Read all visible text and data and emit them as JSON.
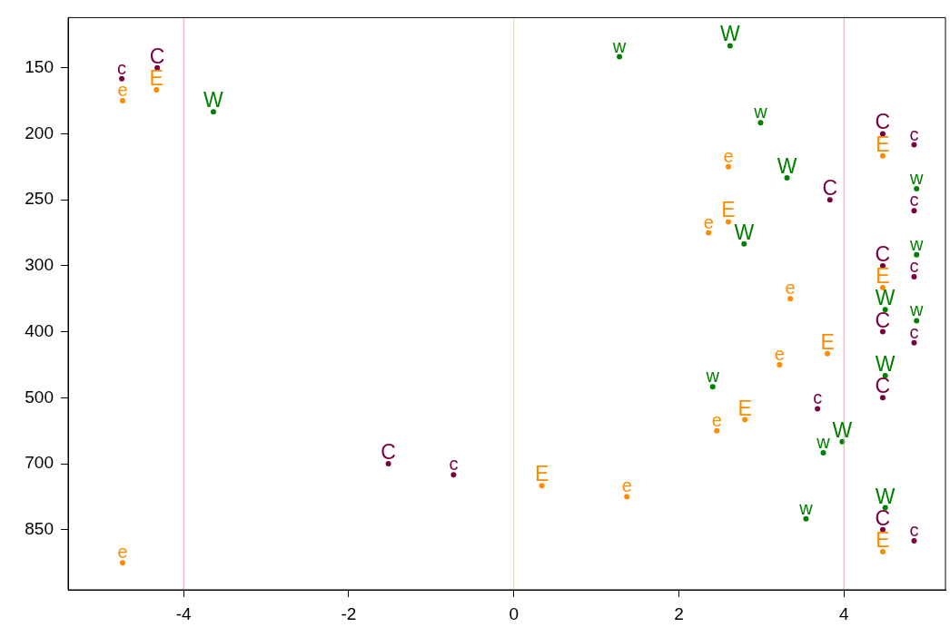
{
  "chart_data": {
    "type": "scatter",
    "orientation": "horizontal",
    "xlim": [
      -5.4,
      5.23
    ],
    "xticks": [
      -4,
      -2,
      0,
      2,
      4
    ],
    "categories": [
      null,
      null,
      "150",
      null,
      null,
      null,
      null,
      null,
      "200",
      null,
      null,
      null,
      null,
      null,
      "250",
      null,
      null,
      null,
      null,
      null,
      "300",
      null,
      null,
      null,
      null,
      null,
      "400",
      null,
      null,
      null,
      null,
      null,
      "500",
      null,
      null,
      null,
      null,
      null,
      "700",
      null,
      null,
      null,
      null,
      null,
      "850",
      null,
      null,
      null
    ],
    "legend": false,
    "ref_lines": [
      {
        "axis": "x",
        "value": -4,
        "color": "#f0a0a8"
      },
      {
        "axis": "x",
        "value": 0,
        "color": "#ffd27a"
      },
      {
        "axis": "x",
        "value": 4,
        "color": "#f0a0a8"
      }
    ],
    "series": [
      {
        "name": "W",
        "color": "#008000",
        "values": [
          2.62,
          null,
          null,
          null,
          null,
          null,
          -3.64,
          null,
          null,
          null,
          null,
          null,
          3.31,
          null,
          null,
          null,
          null,
          null,
          2.79,
          null,
          null,
          null,
          null,
          null,
          4.5,
          null,
          null,
          null,
          null,
          null,
          4.5,
          null,
          null,
          null,
          null,
          null,
          3.98,
          null,
          null,
          null,
          null,
          null,
          4.5,
          null,
          null,
          null,
          null,
          null
        ]
      },
      {
        "name": "w",
        "color": "#008000",
        "values": [
          null,
          1.28,
          null,
          null,
          null,
          null,
          null,
          2.99,
          null,
          null,
          null,
          null,
          null,
          4.88,
          null,
          null,
          null,
          null,
          null,
          4.88,
          null,
          null,
          null,
          null,
          null,
          4.88,
          null,
          null,
          null,
          null,
          null,
          2.41,
          null,
          null,
          null,
          null,
          null,
          3.75,
          null,
          null,
          null,
          null,
          null,
          3.54,
          null,
          null,
          null,
          null
        ]
      },
      {
        "name": "C",
        "color": "#7a0040",
        "values": [
          null,
          null,
          -4.32,
          null,
          null,
          null,
          null,
          null,
          4.47,
          null,
          null,
          null,
          null,
          null,
          3.83,
          null,
          null,
          null,
          null,
          null,
          4.47,
          null,
          null,
          null,
          null,
          null,
          4.47,
          null,
          null,
          null,
          null,
          null,
          4.47,
          null,
          null,
          null,
          null,
          null,
          -1.52,
          null,
          null,
          null,
          null,
          null,
          4.47,
          null,
          null,
          null
        ]
      },
      {
        "name": "c",
        "color": "#7a0040",
        "values": [
          null,
          null,
          null,
          -4.75,
          null,
          null,
          null,
          null,
          null,
          4.85,
          null,
          null,
          null,
          null,
          null,
          4.85,
          null,
          null,
          null,
          null,
          null,
          4.85,
          null,
          null,
          null,
          null,
          null,
          4.85,
          null,
          null,
          null,
          null,
          null,
          3.68,
          null,
          null,
          null,
          null,
          null,
          -0.73,
          null,
          null,
          null,
          null,
          null,
          4.85,
          null,
          null
        ]
      },
      {
        "name": "E",
        "color": "#ff8c00",
        "values": [
          null,
          null,
          null,
          null,
          -4.33,
          null,
          null,
          null,
          null,
          null,
          4.47,
          null,
          null,
          null,
          null,
          null,
          2.6,
          null,
          null,
          null,
          null,
          null,
          4.47,
          null,
          null,
          null,
          null,
          null,
          3.8,
          null,
          null,
          null,
          null,
          null,
          2.8,
          null,
          null,
          null,
          null,
          null,
          0.34,
          null,
          null,
          null,
          null,
          null,
          4.47,
          null
        ]
      },
      {
        "name": "e",
        "color": "#ff8c00",
        "values": [
          null,
          null,
          null,
          null,
          null,
          -4.74,
          null,
          null,
          null,
          null,
          null,
          2.6,
          null,
          null,
          null,
          null,
          null,
          2.36,
          null,
          null,
          null,
          null,
          null,
          3.35,
          null,
          null,
          null,
          null,
          null,
          3.22,
          null,
          null,
          null,
          null,
          null,
          2.46,
          null,
          null,
          null,
          null,
          null,
          1.37,
          null,
          null,
          null,
          null,
          null,
          -4.74
        ]
      }
    ]
  }
}
